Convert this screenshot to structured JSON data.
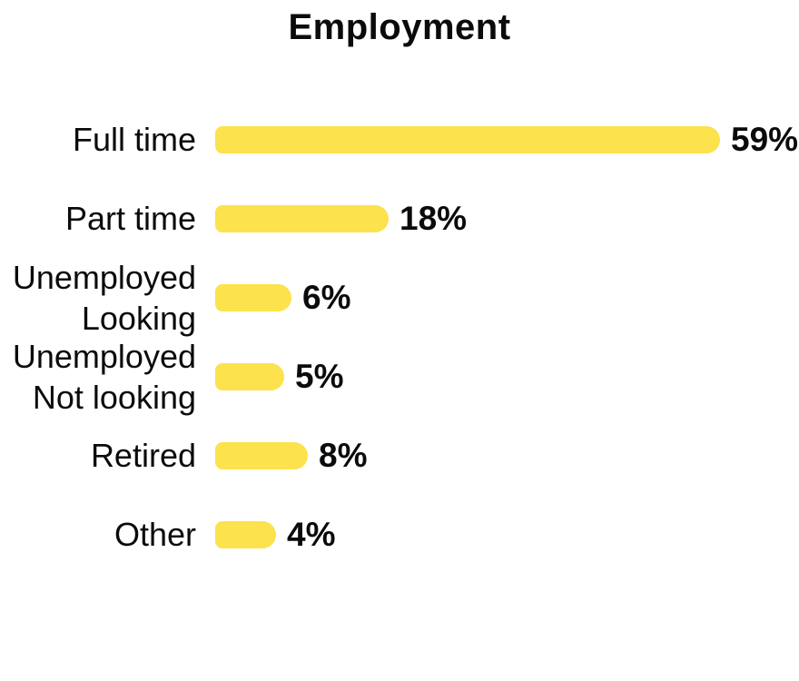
{
  "title": "Employment",
  "colors": {
    "bar": "#fce24c",
    "text": "#0b0b0b",
    "background": "#ffffff"
  },
  "chart_data": {
    "type": "bar",
    "orientation": "horizontal",
    "title": "Employment",
    "xlabel": "",
    "ylabel": "",
    "grid": false,
    "legend": false,
    "xlim": [
      0,
      62
    ],
    "categories": [
      "Full time",
      "Part time",
      "Unemployed\nLooking",
      "Unemployed\nNot looking",
      "Retired",
      "Other"
    ],
    "values": [
      59,
      18,
      6,
      5,
      8,
      4
    ],
    "value_labels": [
      "59%",
      "18%",
      "6%",
      "5%",
      "8%",
      "4%"
    ],
    "unit": "%",
    "bar_color": "#fce24c"
  }
}
